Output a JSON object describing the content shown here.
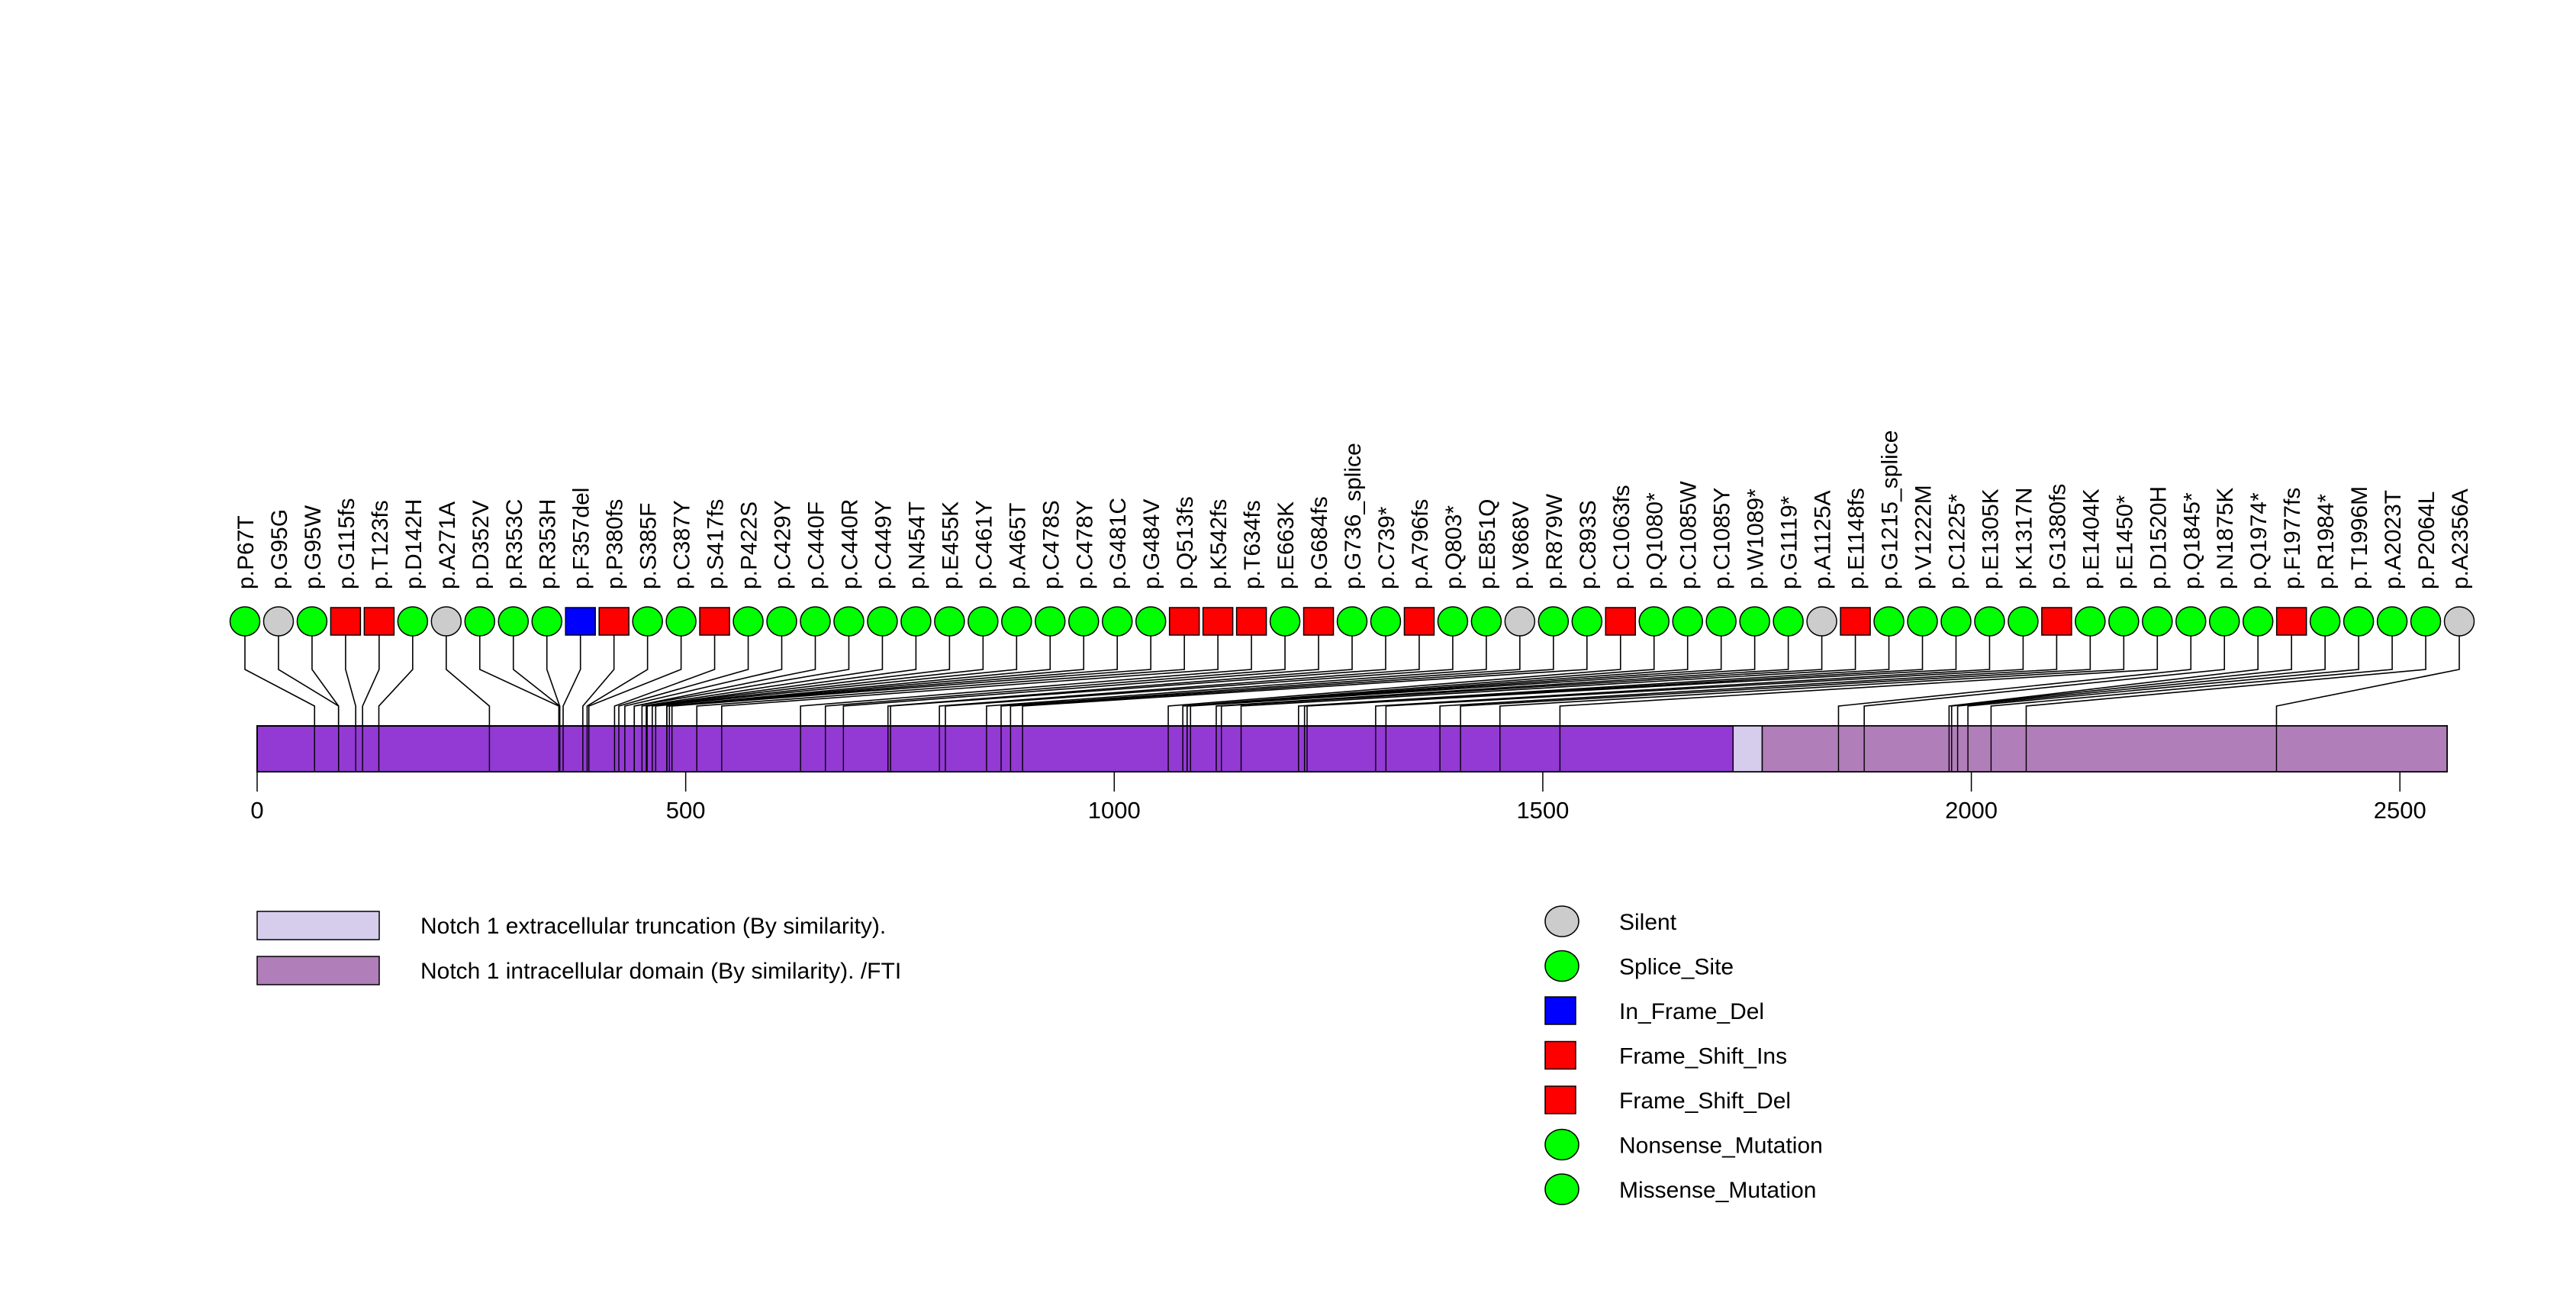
{
  "chart_data": {
    "type": "lollipop",
    "title": "",
    "xlabel": "",
    "ylabel": "",
    "protein_length": 2555,
    "xlim": [
      0,
      2555
    ],
    "ticks": [
      0,
      500,
      1000,
      1500,
      2000,
      2500
    ],
    "tick_labels": [
      "0",
      "500",
      "1000",
      "1500",
      "2000",
      "2500"
    ],
    "base_color": "#9339d4",
    "domains": [
      {
        "name": "Notch 1 extracellular truncation (By similarity).",
        "start": 1722,
        "end": 1756,
        "color": "#d6cdec"
      },
      {
        "name": "Notch 1 intracellular domain (By similarity). /FTI",
        "start": 1756,
        "end": 2555,
        "color": "#b07eb9"
      }
    ],
    "mutation_types": [
      {
        "name": "Silent",
        "shape": "circle",
        "color": "#cccccc"
      },
      {
        "name": "Splice_Site",
        "shape": "circle",
        "color": "#00ff00"
      },
      {
        "name": "In_Frame_Del",
        "shape": "square",
        "color": "#0000ff"
      },
      {
        "name": "Frame_Shift_Ins",
        "shape": "square",
        "color": "#ff0000"
      },
      {
        "name": "Frame_Shift_Del",
        "shape": "square",
        "color": "#ff0000"
      },
      {
        "name": "Nonsense_Mutation",
        "shape": "circle",
        "color": "#00ff00"
      },
      {
        "name": "Missense_Mutation",
        "shape": "circle",
        "color": "#00ff00"
      }
    ],
    "mutations": [
      {
        "label": "p.P67T",
        "pos": 67,
        "type": "Missense_Mutation"
      },
      {
        "label": "p.G95G",
        "pos": 95,
        "type": "Silent"
      },
      {
        "label": "p.G95W",
        "pos": 95,
        "type": "Missense_Mutation"
      },
      {
        "label": "p.G115fs",
        "pos": 115,
        "type": "Frame_Shift_Del"
      },
      {
        "label": "p.T123fs",
        "pos": 123,
        "type": "Frame_Shift_Del"
      },
      {
        "label": "p.D142H",
        "pos": 142,
        "type": "Missense_Mutation"
      },
      {
        "label": "p.A271A",
        "pos": 271,
        "type": "Silent"
      },
      {
        "label": "p.D352V",
        "pos": 352,
        "type": "Missense_Mutation"
      },
      {
        "label": "p.R353C",
        "pos": 353,
        "type": "Missense_Mutation"
      },
      {
        "label": "p.R353H",
        "pos": 353,
        "type": "Missense_Mutation"
      },
      {
        "label": "p.F357del",
        "pos": 357,
        "type": "In_Frame_Del"
      },
      {
        "label": "p.P380fs",
        "pos": 380,
        "type": "Frame_Shift_Del"
      },
      {
        "label": "p.S385F",
        "pos": 385,
        "type": "Missense_Mutation"
      },
      {
        "label": "p.C387Y",
        "pos": 387,
        "type": "Missense_Mutation"
      },
      {
        "label": "p.S417fs",
        "pos": 417,
        "type": "Frame_Shift_Del"
      },
      {
        "label": "p.P422S",
        "pos": 422,
        "type": "Missense_Mutation"
      },
      {
        "label": "p.C429Y",
        "pos": 429,
        "type": "Missense_Mutation"
      },
      {
        "label": "p.C440F",
        "pos": 440,
        "type": "Missense_Mutation"
      },
      {
        "label": "p.C440R",
        "pos": 440,
        "type": "Missense_Mutation"
      },
      {
        "label": "p.C449Y",
        "pos": 449,
        "type": "Missense_Mutation"
      },
      {
        "label": "p.N454T",
        "pos": 454,
        "type": "Missense_Mutation"
      },
      {
        "label": "p.E455K",
        "pos": 455,
        "type": "Missense_Mutation"
      },
      {
        "label": "p.C461Y",
        "pos": 461,
        "type": "Missense_Mutation"
      },
      {
        "label": "p.A465T",
        "pos": 465,
        "type": "Missense_Mutation"
      },
      {
        "label": "p.C478S",
        "pos": 478,
        "type": "Missense_Mutation"
      },
      {
        "label": "p.C478Y",
        "pos": 478,
        "type": "Missense_Mutation"
      },
      {
        "label": "p.G481C",
        "pos": 481,
        "type": "Missense_Mutation"
      },
      {
        "label": "p.G484V",
        "pos": 484,
        "type": "Missense_Mutation"
      },
      {
        "label": "p.Q513fs",
        "pos": 513,
        "type": "Frame_Shift_Del"
      },
      {
        "label": "p.K542fs",
        "pos": 542,
        "type": "Frame_Shift_Del"
      },
      {
        "label": "p.T634fs",
        "pos": 634,
        "type": "Frame_Shift_Del"
      },
      {
        "label": "p.E663K",
        "pos": 663,
        "type": "Missense_Mutation"
      },
      {
        "label": "p.G684fs",
        "pos": 684,
        "type": "Frame_Shift_Del"
      },
      {
        "label": "p.G736_splice",
        "pos": 736,
        "type": "Splice_Site"
      },
      {
        "label": "p.C739*",
        "pos": 739,
        "type": "Nonsense_Mutation"
      },
      {
        "label": "p.A796fs",
        "pos": 796,
        "type": "Frame_Shift_Del"
      },
      {
        "label": "p.Q803*",
        "pos": 803,
        "type": "Nonsense_Mutation"
      },
      {
        "label": "p.E851Q",
        "pos": 851,
        "type": "Missense_Mutation"
      },
      {
        "label": "p.V868V",
        "pos": 868,
        "type": "Silent"
      },
      {
        "label": "p.R879W",
        "pos": 879,
        "type": "Missense_Mutation"
      },
      {
        "label": "p.C893S",
        "pos": 893,
        "type": "Missense_Mutation"
      },
      {
        "label": "p.C1063fs",
        "pos": 1063,
        "type": "Frame_Shift_Del"
      },
      {
        "label": "p.Q1080*",
        "pos": 1080,
        "type": "Nonsense_Mutation"
      },
      {
        "label": "p.C1085W",
        "pos": 1085,
        "type": "Missense_Mutation"
      },
      {
        "label": "p.C1085Y",
        "pos": 1085,
        "type": "Missense_Mutation"
      },
      {
        "label": "p.W1089*",
        "pos": 1089,
        "type": "Nonsense_Mutation"
      },
      {
        "label": "p.G1119*",
        "pos": 1119,
        "type": "Nonsense_Mutation"
      },
      {
        "label": "p.A1125A",
        "pos": 1125,
        "type": "Silent"
      },
      {
        "label": "p.E1148fs",
        "pos": 1148,
        "type": "Frame_Shift_Del"
      },
      {
        "label": "p.G1215_splice",
        "pos": 1215,
        "type": "Splice_Site"
      },
      {
        "label": "p.V1222M",
        "pos": 1222,
        "type": "Missense_Mutation"
      },
      {
        "label": "p.C1225*",
        "pos": 1225,
        "type": "Nonsense_Mutation"
      },
      {
        "label": "p.E1305K",
        "pos": 1305,
        "type": "Missense_Mutation"
      },
      {
        "label": "p.K1317N",
        "pos": 1317,
        "type": "Missense_Mutation"
      },
      {
        "label": "p.G1380fs",
        "pos": 1380,
        "type": "Frame_Shift_Del"
      },
      {
        "label": "p.E1404K",
        "pos": 1404,
        "type": "Missense_Mutation"
      },
      {
        "label": "p.E1450*",
        "pos": 1450,
        "type": "Nonsense_Mutation"
      },
      {
        "label": "p.D1520H",
        "pos": 1520,
        "type": "Missense_Mutation"
      },
      {
        "label": "p.Q1845*",
        "pos": 1845,
        "type": "Nonsense_Mutation"
      },
      {
        "label": "p.N1875K",
        "pos": 1875,
        "type": "Missense_Mutation"
      },
      {
        "label": "p.Q1974*",
        "pos": 1974,
        "type": "Nonsense_Mutation"
      },
      {
        "label": "p.F1977fs",
        "pos": 1977,
        "type": "Frame_Shift_Del"
      },
      {
        "label": "p.R1984*",
        "pos": 1984,
        "type": "Nonsense_Mutation"
      },
      {
        "label": "p.T1996M",
        "pos": 1996,
        "type": "Missense_Mutation"
      },
      {
        "label": "p.A2023T",
        "pos": 2023,
        "type": "Missense_Mutation"
      },
      {
        "label": "p.P2064L",
        "pos": 2064,
        "type": "Missense_Mutation"
      },
      {
        "label": "p.A2356A",
        "pos": 2356,
        "type": "Silent"
      }
    ]
  }
}
